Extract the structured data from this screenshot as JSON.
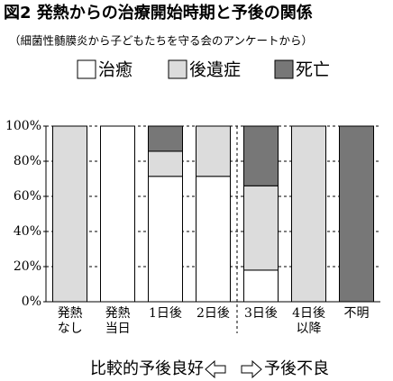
{
  "chart_data": {
    "type": "stacked_bar",
    "title": "図2 発熱からの治療開始時期と予後の関係",
    "subtitle": "（細菌性髄膜炎から子どもたちを守る会のアンケートから）",
    "categories": [
      "発熱なし",
      "発熱当日",
      "1日後",
      "2日後",
      "3日後",
      "4日後以降",
      "不明"
    ],
    "series": [
      {
        "name": "治癒",
        "color": "#ffffff",
        "values": [
          0,
          100,
          71.4,
          71.4,
          18,
          0,
          0
        ]
      },
      {
        "name": "後遺症",
        "color": "#dcdcdc",
        "values": [
          100,
          0,
          14.3,
          28.6,
          48,
          100,
          0
        ]
      },
      {
        "name": "死亡",
        "color": "#777777",
        "values": [
          0,
          0,
          14.3,
          0,
          34,
          0,
          100
        ]
      }
    ],
    "ylim": [
      0,
      100
    ],
    "yticks": [
      {
        "value": 0,
        "label": "0%"
      },
      {
        "value": 20,
        "label": "20%"
      },
      {
        "value": 40,
        "label": "40%"
      },
      {
        "value": 60,
        "label": "60%"
      },
      {
        "value": 80,
        "label": "80%"
      },
      {
        "value": 100,
        "label": "100%"
      }
    ],
    "grid": true,
    "footer_left": "比較的予後良好",
    "footer_right": "予後不良"
  }
}
